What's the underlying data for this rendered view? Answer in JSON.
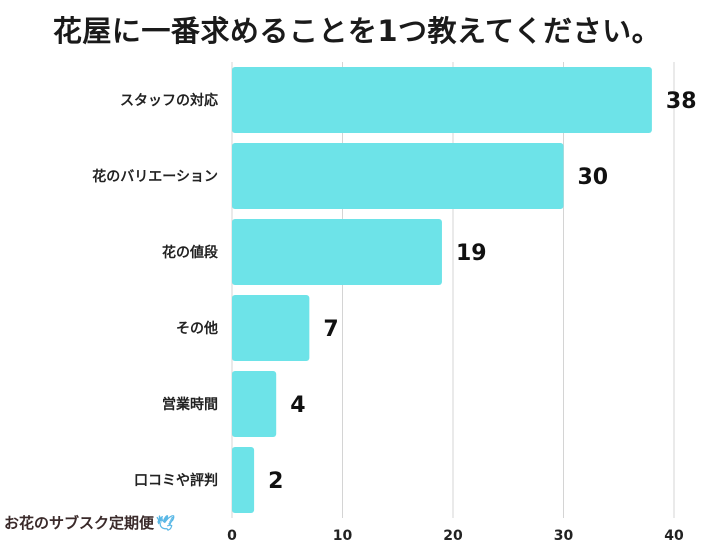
{
  "chart_data": {
    "type": "bar",
    "orientation": "horizontal",
    "title": "花屋に一番求めることを1つ教えてください。",
    "categories": [
      "スタッフの対応",
      "花のバリエーション",
      "花の値段",
      "その他",
      "営業時間",
      "口コミや評判"
    ],
    "values": [
      38,
      30,
      19,
      7,
      4,
      2
    ],
    "xlim": [
      0,
      40
    ],
    "xticks": [
      0,
      10,
      20,
      30,
      40
    ],
    "grid": true,
    "bar_color": "#6de3e8"
  },
  "watermark": {
    "text": "お花のサブスク定期便",
    "icon": "bird-icon"
  }
}
